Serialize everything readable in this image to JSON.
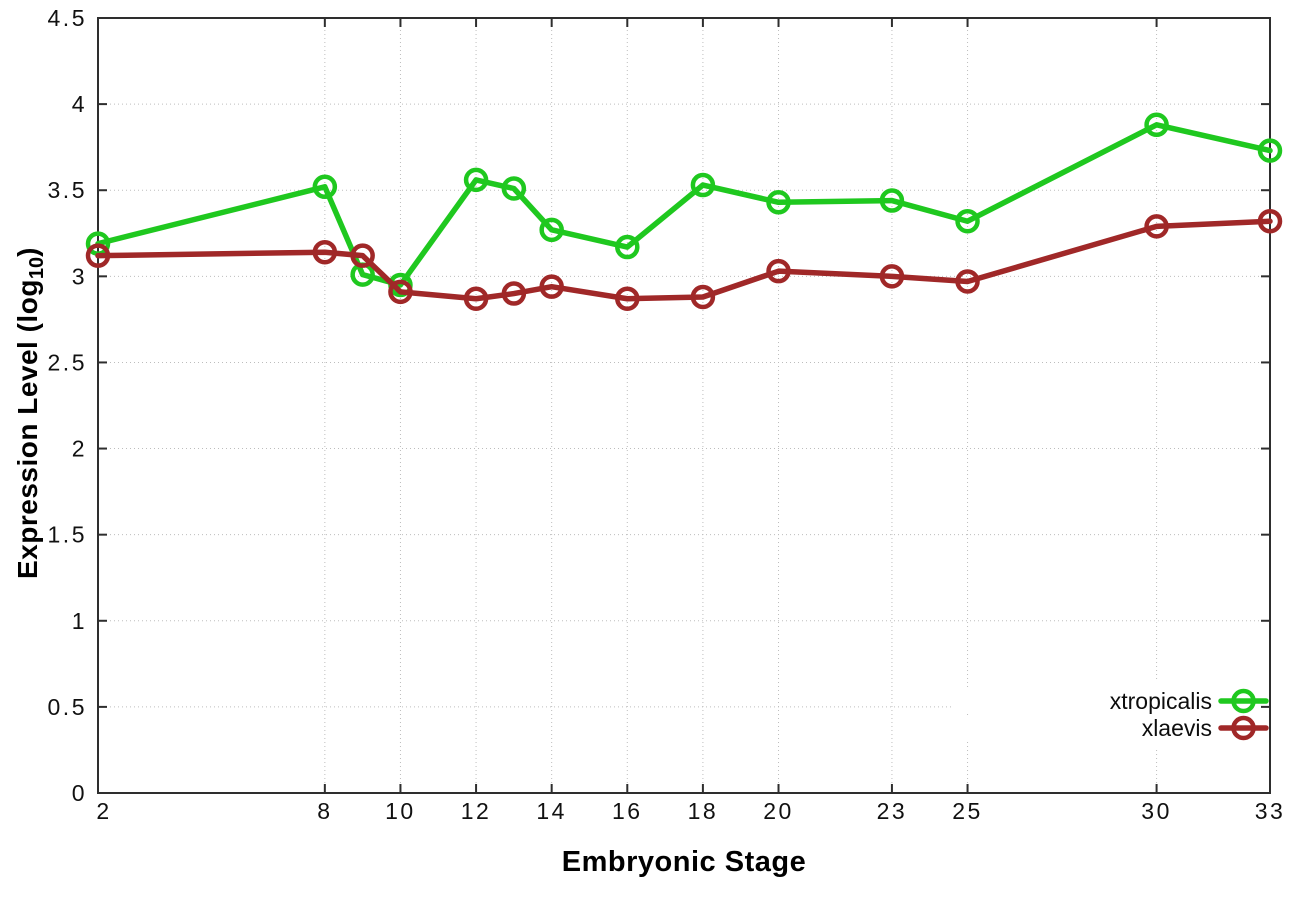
{
  "chart_data": {
    "type": "line",
    "title": "",
    "xlabel": "Embryonic Stage",
    "ylabel": "Expression Level (log10)",
    "ylabel_parts": {
      "pre": "Expression Level (log",
      "sub": "10",
      "post": ")"
    },
    "xlim": [
      2,
      33
    ],
    "ylim": [
      0,
      4.5
    ],
    "x_tick_values": [
      2,
      8,
      10,
      12,
      14,
      16,
      18,
      20,
      23,
      25,
      30,
      33
    ],
    "x_tick_labels": [
      "2",
      "8",
      "10",
      "12",
      "14",
      "16",
      "18",
      "20",
      "23",
      "25",
      "30",
      "33"
    ],
    "y_tick_values": [
      0,
      0.5,
      1,
      1.5,
      2,
      2.5,
      3,
      3.5,
      4,
      4.5
    ],
    "y_tick_labels": [
      "0",
      "0.5",
      "1",
      "1.5",
      "2",
      "2.5",
      "3",
      "3.5",
      "4",
      "4.5"
    ],
    "grid": "dotted",
    "legend_position": "bottom-right",
    "colors": {
      "grid": "#bdbdbd",
      "border": "#2e2e2e",
      "text": "#111111",
      "background": "#ffffff"
    },
    "series": [
      {
        "name": "xtropicalis",
        "color": "#1fc81f",
        "x": [
          2,
          8,
          9,
          10,
          12,
          13,
          14,
          16,
          18,
          20,
          23,
          25,
          30,
          33
        ],
        "y": [
          3.19,
          3.52,
          3.01,
          2.95,
          3.56,
          3.51,
          3.27,
          3.17,
          3.53,
          3.43,
          3.44,
          3.32,
          3.88,
          3.73
        ]
      },
      {
        "name": "xlaevis",
        "color": "#a02828",
        "x": [
          2,
          8,
          9,
          10,
          12,
          13,
          14,
          16,
          18,
          20,
          23,
          25,
          30,
          33
        ],
        "y": [
          3.12,
          3.14,
          3.12,
          2.91,
          2.87,
          2.9,
          2.94,
          2.87,
          2.88,
          3.03,
          3.0,
          2.97,
          3.29,
          3.32
        ]
      }
    ]
  }
}
